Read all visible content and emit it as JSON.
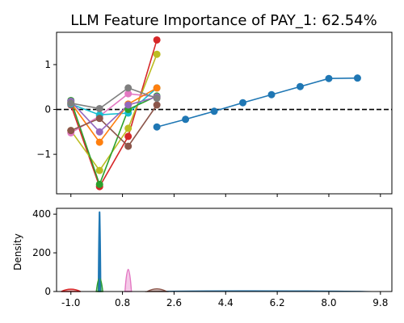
{
  "chart_data": [
    {
      "type": "line",
      "title": "LLM Feature Importance of PAY_1: 62.54%",
      "xlim": [
        -1.5,
        10.2
      ],
      "ylim": [
        -1.88,
        1.72
      ],
      "yticks": [
        -1,
        0,
        1
      ],
      "ytick_labels": [
        "−1",
        "0",
        "1"
      ],
      "xticks": [
        -1.0,
        0.8,
        2.6,
        4.4,
        6.2,
        8.0,
        9.8
      ],
      "reference_line": {
        "y": 0,
        "style": "dashed",
        "color": "#000000"
      },
      "x": [
        -1,
        0,
        1,
        2
      ],
      "series": [
        {
          "color": "#d62728",
          "values": [
            0.1,
            -1.72,
            -0.6,
            1.55
          ]
        },
        {
          "color": "#bcbd22",
          "values": [
            -0.47,
            -1.36,
            -0.42,
            1.23
          ]
        },
        {
          "color": "#e377c2",
          "values": [
            -0.52,
            -0.15,
            0.35,
            0.28
          ]
        },
        {
          "color": "#17becf",
          "values": [
            0.12,
            -0.12,
            -0.08,
            0.48
          ]
        },
        {
          "color": "#2ca02c",
          "values": [
            0.2,
            -1.67,
            0.0,
            0.3
          ]
        },
        {
          "color": "#ff7f0e",
          "values": [
            0.15,
            -0.73,
            0.12,
            0.48
          ]
        },
        {
          "color": "#8c564b",
          "values": [
            -0.47,
            -0.2,
            -0.82,
            0.1
          ]
        },
        {
          "color": "#9467bd",
          "values": [
            0.18,
            -0.5,
            0.1,
            0.28
          ]
        },
        {
          "color": "#7f7f7f",
          "values": [
            0.14,
            0.02,
            0.48,
            0.25
          ]
        }
      ],
      "main_series": {
        "color": "#1f77b4",
        "x": [
          2,
          3,
          4,
          5,
          6,
          7,
          8,
          9
        ],
        "values": [
          -0.39,
          -0.22,
          -0.04,
          0.15,
          0.33,
          0.51,
          0.69,
          0.7
        ]
      }
    },
    {
      "type": "area",
      "ylabel": "Density",
      "ylim": [
        0,
        430
      ],
      "yticks": [
        0,
        200,
        400
      ],
      "xlim": [
        -1.5,
        10.2
      ],
      "xticks": [
        -1.0,
        0.8,
        2.6,
        4.4,
        6.2,
        8.0,
        9.8
      ],
      "xtick_labels": [
        "-1.0",
        "0.8",
        "2.6",
        "4.4",
        "6.2",
        "8.0",
        "9.8"
      ],
      "peaks": [
        {
          "label": "main_spike",
          "x": 0,
          "value": 412,
          "color": "#1f77b4"
        },
        {
          "x": 1,
          "value": 115,
          "color": "#e377c2"
        },
        {
          "x": 0,
          "value": 70,
          "color": "#2ca02c"
        },
        {
          "x": -1,
          "value": 12,
          "color": "#d62728"
        },
        {
          "x": 2,
          "value": 14,
          "color": "#8c564b"
        }
      ]
    }
  ]
}
